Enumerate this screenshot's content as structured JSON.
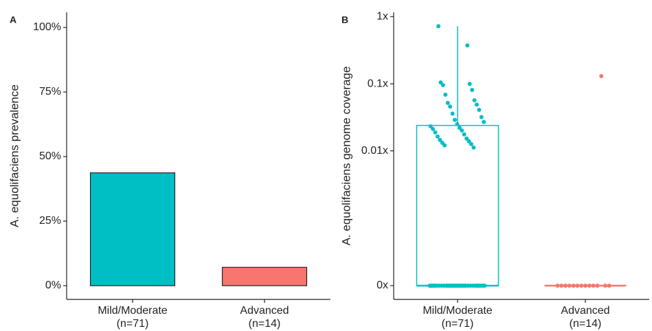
{
  "chart_data": [
    {
      "type": "bar",
      "panel_label": "A",
      "ylabel": "A. equolifaciens prevalence",
      "categories": [
        "Mild/Moderate\n(n=71)",
        "Advanced\n(n=14)"
      ],
      "values": [
        43.7,
        7.1
      ],
      "colors": [
        "#00bfc4",
        "#f8766d"
      ],
      "ylim": [
        0,
        100
      ],
      "yticks": [
        {
          "value": 0,
          "label": "0%"
        },
        {
          "value": 25,
          "label": "25%"
        },
        {
          "value": 50,
          "label": "50%"
        },
        {
          "value": 75,
          "label": "75%"
        },
        {
          "value": 100,
          "label": "100%"
        }
      ]
    },
    {
      "type": "box",
      "panel_label": "B",
      "ylabel": "A. equolifaciens genome coverage",
      "yscale": "pseudo-log",
      "categories": [
        "Mild/Moderate\n(n=71)",
        "Advanced\n(n=14)"
      ],
      "colors": [
        "#00bfc4",
        "#f8766d"
      ],
      "ylim": [
        0,
        1.3
      ],
      "yticks": [
        {
          "value": 0,
          "label": "0x"
        },
        {
          "value": 0.01,
          "label": "0.01x"
        },
        {
          "value": 0.1,
          "label": "0.1x"
        },
        {
          "value": 1,
          "label": "1x"
        }
      ],
      "boxes": [
        {
          "min": 0,
          "q1": 0,
          "median": 0,
          "q3": 0.024,
          "max": 0.72,
          "points": [
            0.72,
            0.373,
            0.105,
            0.1,
            0.0955,
            0.081,
            0.069,
            0.057,
            0.052,
            0.049,
            0.046,
            0.041,
            0.036,
            0.032,
            0.029,
            0.027,
            0.025,
            0.0233,
            0.0222,
            0.0212,
            0.0202,
            0.0189,
            0.0176,
            0.0164,
            0.0153,
            0.0146,
            0.0139,
            0.0132,
            0.0126,
            0.0121,
            0.0112,
            0,
            0,
            0,
            0,
            0,
            0,
            0,
            0,
            0,
            0,
            0,
            0,
            0,
            0,
            0,
            0,
            0,
            0,
            0,
            0,
            0,
            0,
            0,
            0,
            0,
            0,
            0,
            0,
            0,
            0,
            0,
            0,
            0,
            0,
            0,
            0,
            0,
            0,
            0,
            0
          ]
        },
        {
          "min": 0,
          "q1": 0,
          "median": 0,
          "q3": 0,
          "max": 0,
          "points": [
            0.13,
            0,
            0,
            0,
            0,
            0,
            0,
            0,
            0,
            0,
            0,
            0,
            0,
            0
          ]
        }
      ]
    }
  ]
}
